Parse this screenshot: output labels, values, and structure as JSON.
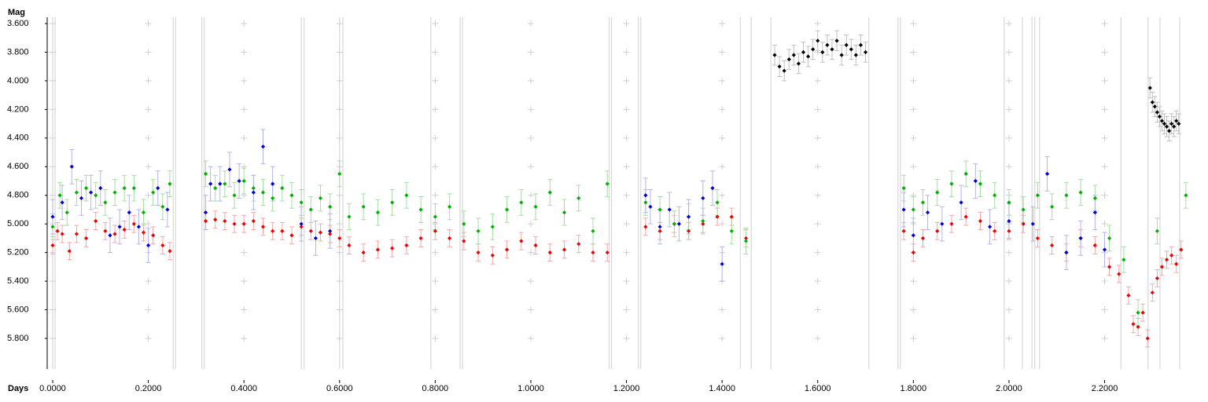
{
  "chart_data": {
    "type": "scatter",
    "x_label": "Days",
    "y_label": "Mag",
    "xlim": [
      -0.0115,
      2.385
    ],
    "ylim": [
      3.556,
      6.014
    ],
    "y_inverted": true,
    "grid": true,
    "xticks": [
      {
        "value": 0,
        "label": "0.0000"
      },
      {
        "value": 0.2,
        "label": "0.2000"
      },
      {
        "value": 0.4,
        "label": "0.4000"
      },
      {
        "value": 0.6,
        "label": "0.6000"
      },
      {
        "value": 0.8,
        "label": "0.8000"
      },
      {
        "value": 1.0,
        "label": "1.0000"
      },
      {
        "value": 1.2,
        "label": "1.2000"
      },
      {
        "value": 1.4,
        "label": "1.4000"
      },
      {
        "value": 1.6,
        "label": "1.6000"
      },
      {
        "value": 1.8,
        "label": "1.8000"
      },
      {
        "value": 2.0,
        "label": "2.0000"
      },
      {
        "value": 2.2,
        "label": "2.2000"
      }
    ],
    "yticks": [
      {
        "value": 3.6,
        "label": "3.600"
      },
      {
        "value": 3.8,
        "label": "3.800"
      },
      {
        "value": 4.0,
        "label": "4.000"
      },
      {
        "value": 4.2,
        "label": "4.200"
      },
      {
        "value": 4.4,
        "label": "4.400"
      },
      {
        "value": 4.6,
        "label": "4.600"
      },
      {
        "value": 4.8,
        "label": "4.800"
      },
      {
        "value": 5.0,
        "label": "5.000"
      },
      {
        "value": 5.2,
        "label": "5.200"
      },
      {
        "value": 5.4,
        "label": "5.400"
      },
      {
        "value": 5.6,
        "label": "5.600"
      },
      {
        "value": 5.8,
        "label": "5.800"
      }
    ],
    "vertical_lines": [
      0,
      0.005,
      0.252,
      0.257,
      0.312,
      0.317,
      0.52,
      0.526,
      0.6,
      0.607,
      0.791,
      0.852,
      0.857,
      1.164,
      1.169,
      1.225,
      1.23,
      1.438,
      1.461,
      1.502,
      1.707,
      1.768,
      1.773,
      1.99,
      2.028,
      2.048,
      2.054,
      2.064,
      2.234,
      2.291,
      2.316,
      2.357
    ],
    "vertical_line_color": "#d0d0d0",
    "series": [
      {
        "color": "#ee0000",
        "error_color": "#f4a8a8",
        "error": 0.06,
        "x": [
          0.0,
          0.01,
          0.02,
          0.035,
          0.05,
          0.07,
          0.09,
          0.11,
          0.13,
          0.15,
          0.17,
          0.19,
          0.21,
          0.23,
          0.245,
          0.32,
          0.34,
          0.36,
          0.38,
          0.4,
          0.42,
          0.44,
          0.46,
          0.48,
          0.5,
          0.52,
          0.54,
          0.56,
          0.58,
          0.6,
          0.62,
          0.65,
          0.68,
          0.71,
          0.74,
          0.77,
          0.8,
          0.83,
          0.86,
          0.89,
          0.92,
          0.95,
          0.98,
          1.01,
          1.04,
          1.07,
          1.1,
          1.13,
          1.16,
          1.24,
          1.27,
          1.3,
          1.33,
          1.36,
          1.39,
          1.42,
          1.45,
          1.78,
          1.8,
          1.82,
          1.85,
          1.88,
          1.91,
          1.94,
          1.97,
          2.0,
          2.03,
          2.06,
          2.09,
          2.12,
          2.15,
          2.18,
          2.21,
          2.23,
          2.25,
          2.26,
          2.27,
          2.28,
          2.29,
          2.3,
          2.31,
          2.32,
          2.33,
          2.34,
          2.35,
          2.36
        ],
        "values": [
          5.15,
          5.05,
          5.07,
          5.19,
          5.07,
          5.1,
          4.98,
          5.05,
          5.07,
          5.04,
          5.0,
          5.06,
          5.08,
          5.15,
          5.19,
          4.98,
          4.97,
          4.98,
          5.0,
          5.0,
          4.98,
          5.02,
          5.05,
          5.05,
          5.08,
          5.02,
          5.05,
          5.06,
          5.07,
          5.1,
          5.15,
          5.2,
          5.18,
          5.17,
          5.15,
          5.1,
          5.05,
          5.1,
          5.12,
          5.2,
          5.22,
          5.18,
          5.12,
          5.15,
          5.2,
          5.18,
          5.14,
          5.2,
          5.2,
          5.02,
          5.05,
          5.0,
          5.05,
          5.0,
          4.95,
          4.95,
          5.1,
          5.05,
          5.2,
          5.1,
          5.05,
          5.0,
          4.95,
          4.98,
          5.05,
          5.05,
          5.0,
          5.1,
          5.15,
          5.2,
          5.1,
          5.15,
          5.3,
          5.35,
          5.5,
          5.7,
          5.72,
          5.62,
          5.8,
          5.48,
          5.38,
          5.3,
          5.25,
          5.22,
          5.28,
          5.18
        ]
      },
      {
        "color": "#00b000",
        "error_color": "#a8dca8",
        "error": 0.09,
        "x": [
          0.0,
          0.015,
          0.03,
          0.05,
          0.07,
          0.09,
          0.11,
          0.13,
          0.15,
          0.17,
          0.19,
          0.21,
          0.23,
          0.245,
          0.32,
          0.34,
          0.36,
          0.38,
          0.4,
          0.42,
          0.44,
          0.46,
          0.48,
          0.5,
          0.52,
          0.54,
          0.56,
          0.58,
          0.6,
          0.62,
          0.65,
          0.68,
          0.71,
          0.74,
          0.77,
          0.8,
          0.83,
          0.86,
          0.89,
          0.92,
          0.95,
          0.98,
          1.01,
          1.04,
          1.07,
          1.1,
          1.13,
          1.16,
          1.24,
          1.27,
          1.3,
          1.33,
          1.36,
          1.39,
          1.42,
          1.45,
          1.78,
          1.8,
          1.82,
          1.85,
          1.88,
          1.91,
          1.94,
          1.97,
          2.0,
          2.03,
          2.06,
          2.09,
          2.12,
          2.15,
          2.18,
          2.21,
          2.24,
          2.27,
          2.31,
          2.37
        ],
        "values": [
          5.02,
          4.8,
          4.92,
          4.78,
          4.75,
          4.8,
          4.85,
          4.78,
          4.75,
          4.75,
          4.92,
          4.78,
          4.88,
          4.72,
          4.65,
          4.75,
          4.72,
          4.8,
          4.7,
          4.75,
          4.78,
          4.82,
          4.75,
          4.8,
          4.85,
          4.9,
          4.82,
          4.88,
          4.65,
          4.95,
          4.88,
          4.92,
          4.85,
          4.8,
          4.9,
          4.95,
          4.88,
          5.0,
          5.05,
          5.02,
          4.9,
          4.85,
          4.88,
          4.78,
          4.92,
          4.82,
          5.05,
          4.72,
          4.85,
          4.9,
          5.0,
          4.95,
          4.98,
          4.85,
          5.05,
          5.12,
          4.75,
          4.9,
          4.85,
          4.78,
          4.72,
          4.65,
          4.72,
          4.8,
          4.85,
          4.9,
          4.8,
          4.88,
          4.8,
          4.78,
          4.82,
          5.1,
          5.25,
          5.62,
          5.05,
          4.8
        ]
      },
      {
        "color": "#0000dd",
        "error_color": "#b4b4ec",
        "error": 0.12,
        "x": [
          0.0,
          0.02,
          0.04,
          0.06,
          0.08,
          0.1,
          0.12,
          0.14,
          0.16,
          0.18,
          0.2,
          0.22,
          0.24,
          0.32,
          0.33,
          0.35,
          0.37,
          0.39,
          0.42,
          0.44,
          0.46,
          0.52,
          0.55,
          0.58,
          1.24,
          1.25,
          1.27,
          1.29,
          1.31,
          1.33,
          1.36,
          1.38,
          1.4,
          1.78,
          1.8,
          1.83,
          1.86,
          1.9,
          1.93,
          1.96,
          2.0,
          2.05,
          2.08,
          2.12,
          2.15,
          2.18,
          2.2
        ],
        "values": [
          4.95,
          4.85,
          4.6,
          4.82,
          4.78,
          4.75,
          5.08,
          5.02,
          4.92,
          5.02,
          5.15,
          4.75,
          4.9,
          4.92,
          4.72,
          4.72,
          4.62,
          4.7,
          4.78,
          4.46,
          4.72,
          5.0,
          5.1,
          5.05,
          4.8,
          4.88,
          5.02,
          4.9,
          5.0,
          4.95,
          4.82,
          4.75,
          5.28,
          4.9,
          5.08,
          4.92,
          5.0,
          4.85,
          4.7,
          5.02,
          4.98,
          5.0,
          4.65,
          5.2,
          5.1,
          4.92,
          5.18
        ]
      },
      {
        "color": "#000000",
        "error_color": "#c0c0c0",
        "error": 0.07,
        "x": [
          1.51,
          1.52,
          1.53,
          1.54,
          1.55,
          1.56,
          1.57,
          1.58,
          1.59,
          1.6,
          1.61,
          1.62,
          1.63,
          1.64,
          1.65,
          1.66,
          1.67,
          1.68,
          1.69,
          1.7,
          2.295,
          2.3,
          2.305,
          2.31,
          2.315,
          2.32,
          2.325,
          2.33,
          2.335,
          2.34,
          2.345,
          2.35,
          2.355
        ],
        "values": [
          3.82,
          3.9,
          3.93,
          3.85,
          3.82,
          3.88,
          3.8,
          3.83,
          3.78,
          3.72,
          3.8,
          3.75,
          3.78,
          3.72,
          3.82,
          3.75,
          3.78,
          3.82,
          3.75,
          3.8,
          4.05,
          4.15,
          4.18,
          4.22,
          4.25,
          4.28,
          4.3,
          4.32,
          4.35,
          4.3,
          4.32,
          4.28,
          4.3
        ]
      }
    ]
  }
}
